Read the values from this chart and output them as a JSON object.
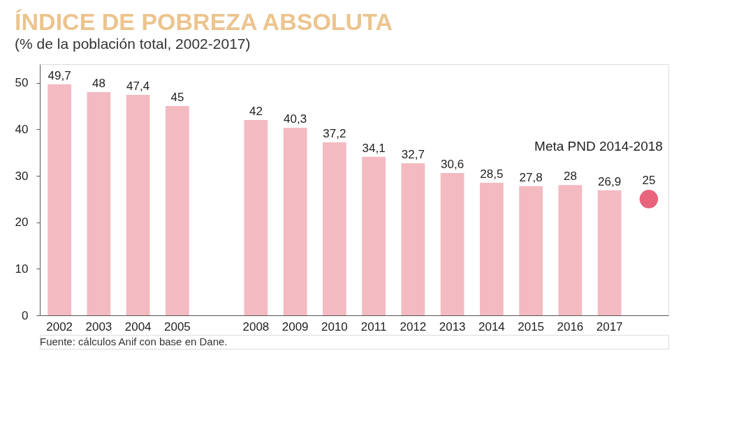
{
  "chart_data": {
    "type": "bar",
    "title": "ÍNDICE DE POBREZA ABSOLUTA",
    "subtitle": "(% de la población total, 2002-2017)",
    "categories": [
      "2002",
      "2003",
      "2004",
      "2005",
      null,
      "2008",
      "2009",
      "2010",
      "2011",
      "2012",
      "2013",
      "2014",
      "2015",
      "2016",
      "2017",
      null
    ],
    "series": [
      {
        "color": "#f4bac1",
        "values": [
          49.7,
          48,
          47.4,
          45,
          null,
          42,
          40.3,
          37.2,
          34.1,
          32.7,
          30.6,
          28.5,
          27.8,
          28,
          26.9,
          null
        ],
        "value_labels": [
          "49,7",
          "48",
          "47,4",
          "45",
          null,
          "42",
          "40,3",
          "37,2",
          "34,1",
          "32,7",
          "30,6",
          "28,5",
          "27,8",
          "28",
          "26,9",
          null
        ]
      },
      {
        "type": "scatter",
        "name": "Meta PND 2014-2018",
        "color": "#e8647c",
        "values": [
          null,
          null,
          null,
          null,
          null,
          null,
          null,
          null,
          null,
          null,
          null,
          null,
          null,
          null,
          null,
          25
        ],
        "value_labels": [
          null,
          null,
          null,
          null,
          null,
          null,
          null,
          null,
          null,
          null,
          null,
          null,
          null,
          null,
          null,
          "25"
        ]
      }
    ],
    "ylim": [
      0,
      54
    ],
    "yticks": [
      0,
      10,
      20,
      30,
      40,
      50
    ],
    "grid": false,
    "legend": false,
    "annotations": [
      "Fuente: cálculos Anif con base en Dane."
    ]
  }
}
